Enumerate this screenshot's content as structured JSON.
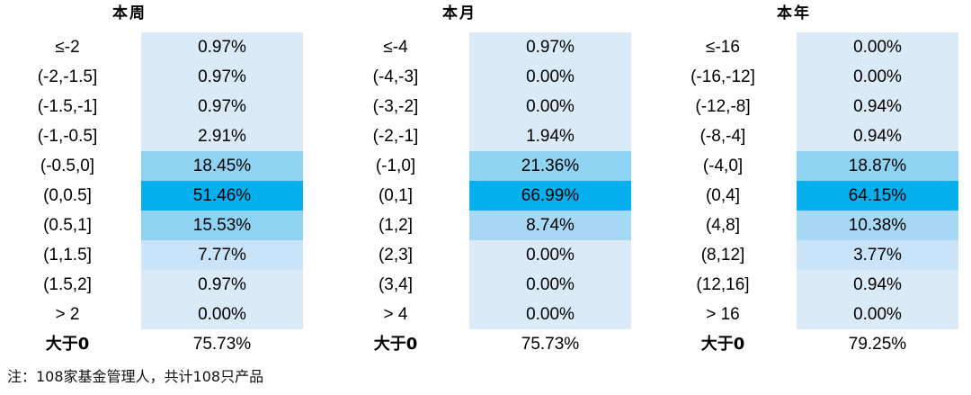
{
  "chart_data": [
    {
      "type": "table",
      "title": "本周",
      "categories": [
        "≤-2",
        "(-2,-1.5]",
        "(-1.5,-1]",
        "(-1,-0.5]",
        "(-0.5,0]",
        "(0,0.5]",
        "(0.5,1]",
        "(1,1.5]",
        "(1.5,2]",
        "> 2"
      ],
      "values": [
        0.97,
        0.97,
        0.97,
        2.91,
        18.45,
        51.46,
        15.53,
        7.77,
        0.97,
        0.0
      ],
      "value_labels": [
        "0.97%",
        "0.97%",
        "0.97%",
        "2.91%",
        "18.45%",
        "51.46%",
        "15.53%",
        "7.77%",
        "0.97%",
        "0.00%"
      ],
      "summary_label": "大于0",
      "summary_value": "75.73%"
    },
    {
      "type": "table",
      "title": "本月",
      "categories": [
        "≤-4",
        "(-4,-3]",
        "(-3,-2]",
        "(-2,-1]",
        "(-1,0]",
        "(0,1]",
        "(1,2]",
        "(2,3]",
        "(3,4]",
        "> 4"
      ],
      "values": [
        0.97,
        0.0,
        0.0,
        1.94,
        21.36,
        66.99,
        8.74,
        0.0,
        0.0,
        0.0
      ],
      "value_labels": [
        "0.97%",
        "0.00%",
        "0.00%",
        "1.94%",
        "21.36%",
        "66.99%",
        "8.74%",
        "0.00%",
        "0.00%",
        "0.00%"
      ],
      "summary_label": "大于0",
      "summary_value": "75.73%"
    },
    {
      "type": "table",
      "title": "本年",
      "categories": [
        "≤-16",
        "(-16,-12]",
        "(-12,-8]",
        "(-8,-4]",
        "(-4,0]",
        "(0,4]",
        "(4,8]",
        "(8,12]",
        "(12,16]",
        "> 16"
      ],
      "values": [
        0.0,
        0.0,
        0.94,
        0.94,
        18.87,
        64.15,
        10.38,
        3.77,
        0.94,
        0.0
      ],
      "value_labels": [
        "0.00%",
        "0.00%",
        "0.94%",
        "0.94%",
        "18.87%",
        "64.15%",
        "10.38%",
        "3.77%",
        "0.94%",
        "0.00%"
      ],
      "summary_label": "大于0",
      "summary_value": "79.25%"
    }
  ],
  "colors": {
    "low": "#dbeaf7",
    "light": "#c9e4f8",
    "mid": "#a8d9f4",
    "high": "#8ed3f2",
    "top": "#06b0ee"
  },
  "note": "注：108家基金管理人，共计108只产品"
}
